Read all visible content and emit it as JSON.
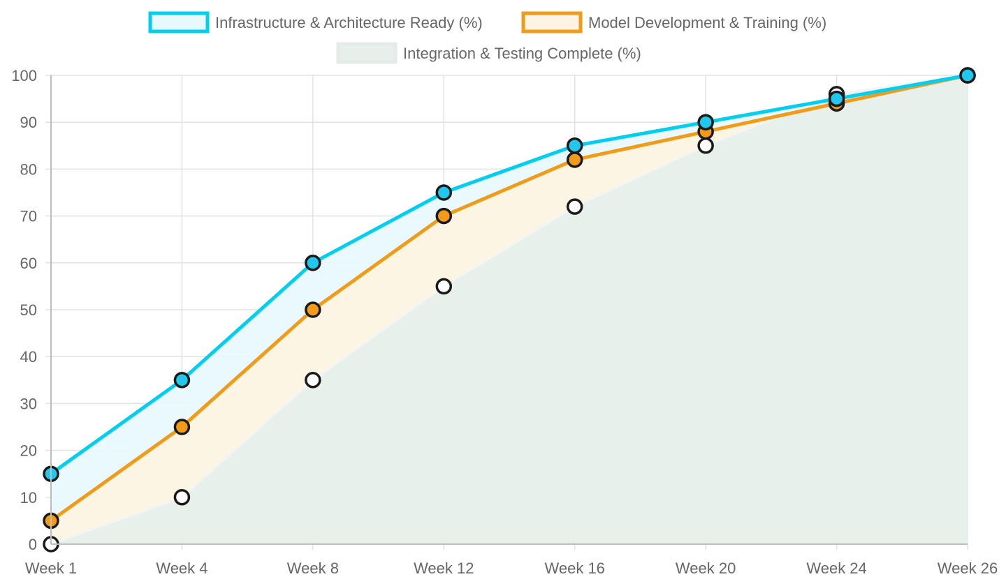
{
  "chart_data": {
    "type": "line",
    "categories": [
      "Week 1",
      "Week 4",
      "Week 8",
      "Week 12",
      "Week 16",
      "Week 20",
      "Week 24",
      "Week 26"
    ],
    "ylim": [
      0,
      100
    ],
    "yticks": [
      0,
      10,
      20,
      30,
      40,
      50,
      60,
      70,
      80,
      90,
      100
    ],
    "grid": true,
    "legend_position": "top-center",
    "series": [
      {
        "name": "Infrastructure & Architecture Ready (%)",
        "values": [
          15,
          35,
          60,
          75,
          85,
          90,
          95,
          100
        ],
        "line_color": "#00cfef",
        "fill_color": "#e8f9fd",
        "point_color": "#1fc8ec"
      },
      {
        "name": "Model Development & Training (%)",
        "values": [
          5,
          25,
          50,
          70,
          82,
          88,
          94,
          100
        ],
        "line_color": "#f29b18",
        "fill_color": "#fdf4e3",
        "point_color": "#f29b18"
      },
      {
        "name": "Integration & Testing Complete (%)",
        "values": [
          0,
          10,
          35,
          55,
          72,
          85,
          96,
          100
        ],
        "line_color": "#f2f5f4",
        "fill_color": "#e6efea",
        "point_color": "#ffffff"
      }
    ]
  }
}
